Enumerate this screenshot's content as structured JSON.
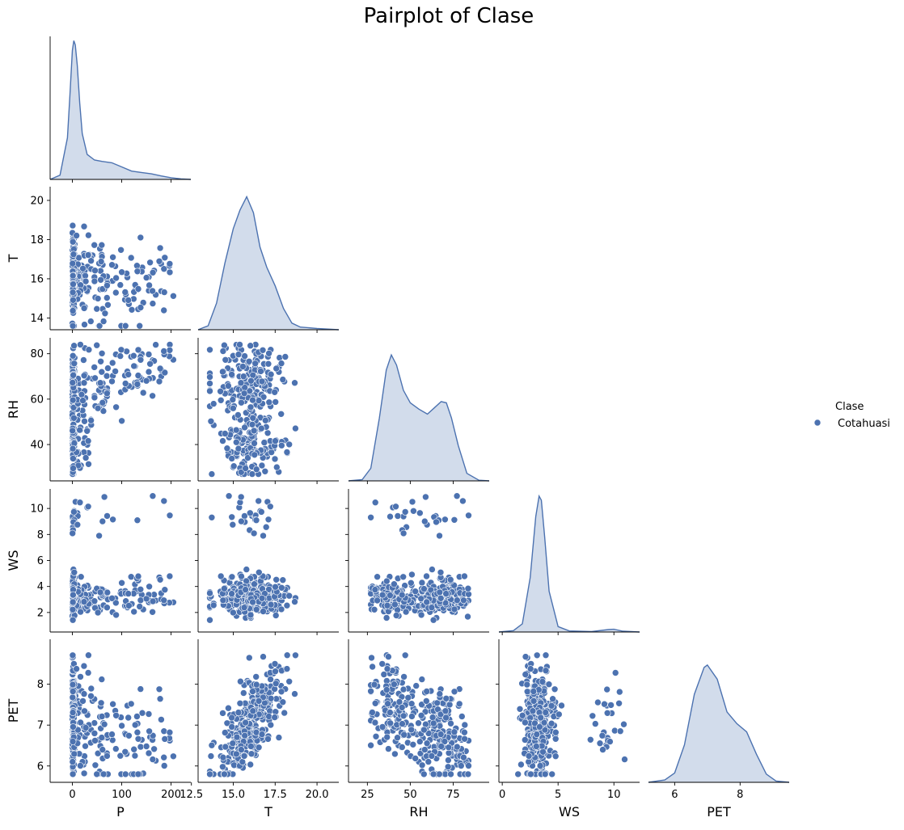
{
  "title": "Pairplot of Clase",
  "colors": {
    "series": "#4c72b0",
    "kde_fill": "#4c72b0",
    "axis": "#000000",
    "background": "#ffffff"
  },
  "legend": {
    "title": "Clase",
    "placement": "right",
    "items": [
      {
        "label": "Cotahuasi",
        "color": "#4c72b0",
        "marker": "circle"
      }
    ]
  },
  "chart_data": {
    "type": "scatter",
    "kind": "pairplot-corner",
    "hue": "Clase",
    "variables": [
      "P",
      "T",
      "RH",
      "WS",
      "PET"
    ],
    "x_labels": [
      "P",
      "T",
      "RH",
      "WS",
      "PET"
    ],
    "y_labels": [
      "",
      "T",
      "RH",
      "WS",
      "PET"
    ],
    "axes": {
      "P": {
        "lim": [
          -45,
          240
        ],
        "ticks": [
          0,
          100,
          200
        ],
        "tick_labels": [
          "0",
          "100",
          "200"
        ]
      },
      "T": {
        "lim": [
          12.9,
          21.3
        ],
        "ticks": [
          12.5,
          15.0,
          17.5,
          20.0
        ],
        "tick_labels": [
          "12.5",
          "15.0",
          "17.5",
          "20.0"
        ],
        "y_ticks": [
          14,
          16,
          18,
          20
        ],
        "y_tick_labels": [
          "14",
          "16",
          "18",
          "20"
        ]
      },
      "RH": {
        "lim": [
          14,
          96
        ],
        "ticks": [
          25,
          50,
          75
        ],
        "tick_labels": [
          "25",
          "50",
          "75"
        ],
        "y_ticks": [
          40,
          60,
          80
        ],
        "y_tick_labels": [
          "40",
          "60",
          "80"
        ]
      },
      "WS": {
        "lim": [
          -0.3,
          12.3
        ],
        "ticks": [
          0,
          5,
          10
        ],
        "tick_labels": [
          "0",
          "5",
          "10"
        ],
        "y_ticks": [
          2,
          4,
          6,
          8,
          10
        ],
        "y_tick_labels": [
          "2",
          "4",
          "6",
          "8",
          "10"
        ]
      },
      "PET": {
        "lim": [
          5.2,
          9.5
        ],
        "ticks": [
          6,
          8
        ],
        "tick_labels": [
          "6",
          "8"
        ],
        "y_ticks": [
          6,
          7,
          8
        ],
        "y_tick_labels": [
          "6",
          "7",
          "8"
        ]
      }
    },
    "y_lims": {
      "T": [
        13.4,
        20.7
      ],
      "RH": [
        24,
        87
      ],
      "WS": [
        0.5,
        11.5
      ],
      "PET": [
        5.6,
        9.1
      ]
    },
    "kde": {
      "P": {
        "x": [
          -45,
          -25,
          -10,
          -5,
          0,
          3,
          6,
          10,
          15,
          20,
          30,
          45,
          60,
          80,
          100,
          120,
          140,
          160,
          180,
          200,
          220,
          240
        ],
        "density": [
          0.0,
          0.03,
          0.3,
          0.6,
          0.93,
          1.0,
          0.97,
          0.82,
          0.55,
          0.33,
          0.18,
          0.14,
          0.13,
          0.12,
          0.09,
          0.06,
          0.05,
          0.04,
          0.025,
          0.012,
          0.004,
          0.0
        ]
      },
      "T": {
        "x": [
          12.9,
          13.5,
          14.0,
          14.5,
          15.0,
          15.4,
          15.8,
          16.2,
          16.6,
          17.0,
          17.5,
          18.0,
          18.5,
          19.0,
          20.0,
          21.3
        ],
        "density": [
          0.0,
          0.03,
          0.2,
          0.5,
          0.76,
          0.9,
          1.0,
          0.88,
          0.62,
          0.47,
          0.33,
          0.16,
          0.05,
          0.02,
          0.01,
          0.0
        ]
      },
      "RH": {
        "x": [
          14,
          22,
          27,
          32,
          36,
          39,
          42,
          46,
          50,
          55,
          60,
          64,
          68,
          71,
          74,
          78,
          83,
          90,
          96
        ],
        "density": [
          0.0,
          0.01,
          0.1,
          0.5,
          0.88,
          1.0,
          0.92,
          0.72,
          0.62,
          0.57,
          0.53,
          0.58,
          0.63,
          0.62,
          0.5,
          0.28,
          0.06,
          0.005,
          0.0
        ]
      },
      "WS": {
        "x": [
          -0.3,
          1.0,
          1.8,
          2.5,
          3.0,
          3.3,
          3.5,
          3.8,
          4.2,
          5.0,
          6.0,
          8.0,
          9.5,
          10.0,
          10.8,
          12.3
        ],
        "density": [
          0.0,
          0.01,
          0.06,
          0.4,
          0.85,
          1.0,
          0.97,
          0.7,
          0.3,
          0.04,
          0.008,
          0.003,
          0.018,
          0.02,
          0.006,
          0.0
        ]
      },
      "PET": {
        "x": [
          5.2,
          5.7,
          6.0,
          6.3,
          6.6,
          6.9,
          7.0,
          7.3,
          7.6,
          7.9,
          8.2,
          8.5,
          8.8,
          9.1,
          9.5
        ],
        "density": [
          0.0,
          0.02,
          0.08,
          0.32,
          0.75,
          0.98,
          1.0,
          0.88,
          0.6,
          0.5,
          0.43,
          0.24,
          0.07,
          0.01,
          0.0
        ]
      }
    },
    "kde_peak_fraction": {
      "P": 0.97,
      "T": 0.93,
      "RH": 0.88,
      "WS": 0.95,
      "PET": 0.82
    },
    "scatter_clusters": {
      "P": [
        {
          "kind": "spike",
          "n": 170,
          "sd": 2.5
        },
        {
          "kind": "tail",
          "n": 150,
          "min": 10,
          "max": 205
        }
      ],
      "T": [
        {
          "mean": 16.1,
          "sd": 1.0,
          "n": 320,
          "min": 13.6,
          "max": 20.4
        }
      ],
      "RH": [
        {
          "mean": 40,
          "sd": 6,
          "n": 170,
          "min": 27,
          "max": 84
        },
        {
          "mean": 68,
          "sd": 7,
          "n": 150,
          "min": 27,
          "max": 84
        }
      ],
      "WS": [
        {
          "mean": 3.2,
          "sd": 0.7,
          "n": 300,
          "min": 1.1,
          "max": 5.7
        },
        {
          "mean": 9.6,
          "sd": 0.7,
          "n": 20,
          "min": 7.4,
          "max": 11.1
        }
      ],
      "PET": [
        {
          "mean": 7.1,
          "sd": 0.55,
          "n": 320,
          "min": 5.8,
          "max": 8.9
        }
      ]
    },
    "grid": false
  }
}
